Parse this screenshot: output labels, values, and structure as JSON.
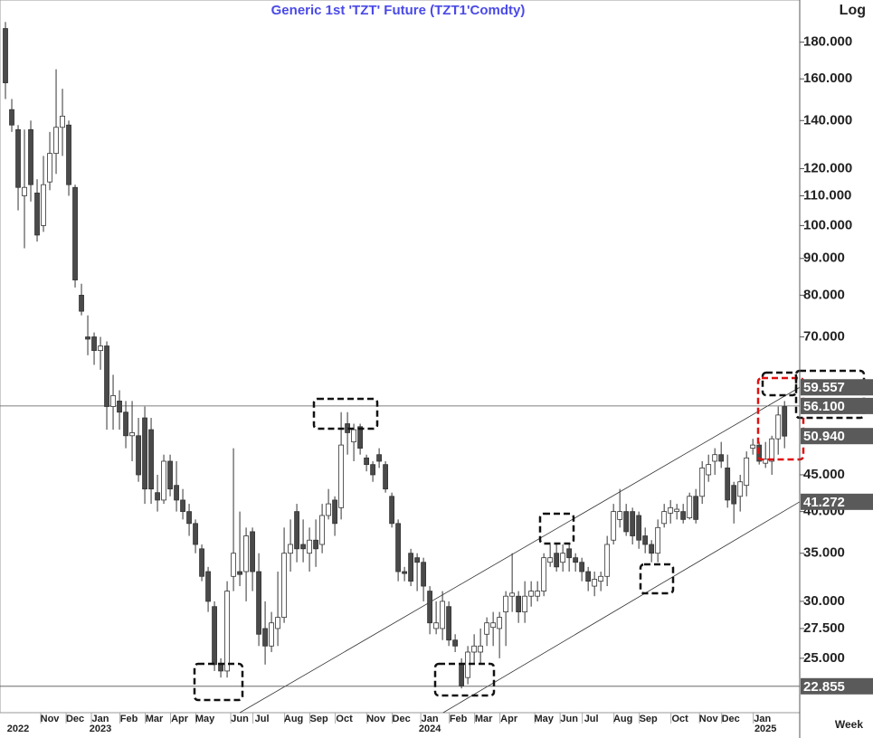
{
  "chart_data": {
    "type": "candlestick",
    "title": "Generic  1st  'TZT'  Future  (TZT1'Comdty)",
    "scale_label": "Log",
    "period_label": "Week",
    "log_scale": true,
    "ylim": [
      21.0,
      206
    ],
    "xlim": [
      -0.86,
      125.4
    ],
    "yticks": [
      {
        "value": 180,
        "label": "180.000"
      },
      {
        "value": 160,
        "label": "160.000"
      },
      {
        "value": 140,
        "label": "140.000"
      },
      {
        "value": 120,
        "label": "120.000"
      },
      {
        "value": 110,
        "label": "110.000"
      },
      {
        "value": 100,
        "label": "100.000"
      },
      {
        "value": 90,
        "label": "90.000"
      },
      {
        "value": 80,
        "label": "80.000"
      },
      {
        "value": 70,
        "label": "70.000"
      },
      {
        "value": 45,
        "label": "45.000"
      },
      {
        "value": 40,
        "label": "40.000"
      },
      {
        "value": 35,
        "label": "35.000"
      },
      {
        "value": 30,
        "label": "30.000"
      },
      {
        "value": 27.5,
        "label": "27.500"
      },
      {
        "value": 25,
        "label": "25.000"
      }
    ],
    "xticks": [
      {
        "value": 7,
        "label": "Nov"
      },
      {
        "value": 11,
        "label": "Dec"
      },
      {
        "value": 15,
        "label": "Jan"
      },
      {
        "value": 19.5,
        "label": "Feb"
      },
      {
        "value": 23.5,
        "label": "Mar"
      },
      {
        "value": 27.5,
        "label": "Apr"
      },
      {
        "value": 31.5,
        "label": "May"
      },
      {
        "value": 37,
        "label": "Jun"
      },
      {
        "value": 40.5,
        "label": "Jul"
      },
      {
        "value": 45.5,
        "label": "Aug"
      },
      {
        "value": 49.5,
        "label": "Sep"
      },
      {
        "value": 53.5,
        "label": "Oct"
      },
      {
        "value": 58.5,
        "label": "Nov"
      },
      {
        "value": 62.5,
        "label": "Dec"
      },
      {
        "value": 67,
        "label": "Jan"
      },
      {
        "value": 71.5,
        "label": "Feb"
      },
      {
        "value": 75.5,
        "label": "Mar"
      },
      {
        "value": 79.5,
        "label": "Apr"
      },
      {
        "value": 85,
        "label": "May"
      },
      {
        "value": 89,
        "label": "Jun"
      },
      {
        "value": 92.5,
        "label": "Jul"
      },
      {
        "value": 97.5,
        "label": "Aug"
      },
      {
        "value": 101.5,
        "label": "Sep"
      },
      {
        "value": 106.5,
        "label": "Oct"
      },
      {
        "value": 111,
        "label": "Nov"
      },
      {
        "value": 114.5,
        "label": "Dec"
      },
      {
        "value": 119.5,
        "label": "Jan"
      }
    ],
    "year_ticks": [
      {
        "value": 2,
        "label": "2022"
      },
      {
        "value": 15,
        "label": "2023"
      },
      {
        "value": 67,
        "label": "2024"
      },
      {
        "value": 120,
        "label": "2025"
      }
    ],
    "hlines": [
      {
        "value": 56.1,
        "label": "56.100"
      },
      {
        "value": 22.855,
        "label": "22.855"
      }
    ],
    "price_labels": [
      {
        "value": 59.557,
        "label": "59.557"
      },
      {
        "value": 50.94,
        "label": "50.940"
      },
      {
        "value": 41.272,
        "label": "41.272"
      }
    ],
    "trendlines": [
      {
        "points": [
          [
            37,
            21.0
          ],
          [
            125.4,
            59.557
          ]
        ]
      },
      {
        "points": [
          [
            69.1,
            21.0
          ],
          [
            125.4,
            41.272
          ]
        ]
      }
    ],
    "open": [
      188,
      145,
      136,
      110,
      136,
      111,
      100,
      115,
      126,
      137,
      138,
      113,
      80,
      70,
      70,
      67,
      68,
      56,
      57,
      55,
      51,
      51,
      54,
      52,
      42.5,
      41.5,
      47,
      43.5,
      41.5,
      40,
      38.5,
      35.5,
      33,
      29.5,
      24.5,
      24,
      32.5,
      33,
      33,
      37.5,
      33,
      27.5,
      26,
      27.5,
      28.5,
      35,
      40,
      36,
      35,
      36.5,
      36,
      39.5,
      41.5,
      40.5,
      53,
      50,
      52.5,
      47.5,
      46.5,
      48,
      46.5,
      42,
      38.5,
      33,
      35,
      34.5,
      34,
      31,
      27.5,
      27.5,
      29.5,
      26.5,
      24.5,
      23.5,
      25.5,
      25.5,
      27,
      27.6,
      27.5,
      29,
      30.5,
      30.5,
      29,
      30.5,
      30.5,
      31,
      34,
      35,
      34,
      35.5,
      34.5,
      34,
      33,
      31.5,
      32,
      32.5,
      36.5,
      39,
      40,
      40,
      39.5,
      37,
      36,
      35,
      38.5,
      39.8,
      40,
      40,
      39.2,
      42,
      42,
      45,
      47,
      48,
      46,
      43.5,
      42,
      43.5,
      49,
      49.5,
      46.7,
      47,
      50.5,
      56
    ],
    "high": [
      192,
      150,
      138,
      136,
      140,
      116,
      125,
      135,
      165,
      155,
      140,
      114,
      83,
      75,
      71,
      70,
      69,
      62,
      59,
      57,
      57,
      54,
      56,
      54,
      45,
      48,
      48,
      47,
      43,
      41,
      39,
      36,
      33.5,
      30,
      25,
      32,
      49,
      40,
      38,
      38,
      35,
      30,
      29,
      33,
      38,
      39,
      41,
      39,
      38,
      39,
      41,
      43,
      42,
      55,
      55,
      53,
      53,
      48,
      47,
      49,
      47,
      42.5,
      39,
      33.5,
      35.5,
      35,
      34.5,
      31.5,
      30,
      31,
      30,
      27,
      25,
      26,
      27,
      27.5,
      28.5,
      29,
      29,
      31,
      35,
      31,
      32,
      32,
      32,
      35,
      36,
      36,
      36,
      36,
      35,
      34.5,
      33.5,
      33,
      33,
      37,
      41,
      43,
      41,
      40.5,
      40,
      38,
      36.5,
      39,
      41,
      41.5,
      41,
      41,
      42.5,
      43,
      47,
      48,
      49,
      50,
      48,
      44,
      45,
      48.5,
      50.5,
      50,
      50,
      51,
      56,
      57
    ],
    "low": [
      150,
      135,
      105,
      93,
      108,
      95,
      98,
      112,
      118,
      125,
      110,
      82,
      75,
      66,
      64,
      63,
      52,
      52,
      52,
      49,
      47,
      44,
      41,
      41,
      40,
      41,
      42,
      40,
      39,
      37,
      35,
      32,
      29,
      24,
      23.5,
      23.5,
      31,
      31.5,
      30,
      31,
      26,
      24.5,
      25.5,
      26,
      28,
      33,
      34,
      34,
      33,
      33.5,
      35,
      39,
      37,
      39,
      48,
      47,
      48,
      45.5,
      44,
      46,
      42.5,
      38,
      32,
      32,
      31.5,
      31,
      30,
      27,
      27,
      26.5,
      26,
      25.5,
      22.7,
      23,
      24.5,
      24.5,
      26,
      26,
      25,
      26,
      29,
      28,
      28,
      29.5,
      30,
      30.5,
      33.5,
      33,
      33,
      33,
      33,
      32,
      31,
      30.5,
      31,
      31.5,
      36,
      38,
      37,
      36,
      35.5,
      35,
      34,
      34,
      38,
      38.5,
      39,
      38.5,
      39,
      38.5,
      41,
      44,
      45,
      46,
      40.5,
      38.5,
      40,
      42,
      48,
      46.5,
      46,
      45,
      48,
      49
    ],
    "close": [
      158,
      138,
      113,
      113,
      114,
      97,
      114,
      126,
      137,
      142,
      114,
      84,
      76,
      69.5,
      67,
      68,
      56,
      58,
      55,
      51,
      51.5,
      45,
      43,
      43,
      41.5,
      47,
      43,
      41.5,
      40,
      38.5,
      36,
      32.5,
      30,
      24.5,
      24,
      31,
      35,
      32.7,
      37,
      33,
      27,
      26,
      28,
      28.5,
      35,
      36,
      35.5,
      35.5,
      36.5,
      35.5,
      39.5,
      41,
      38.5,
      49.5,
      51.5,
      52,
      49,
      46.5,
      45,
      47,
      43,
      38.5,
      33,
      32.8,
      32,
      34,
      31.5,
      28,
      28,
      30,
      26.5,
      26,
      22.9,
      25.5,
      26,
      26,
      28,
      28,
      28.5,
      30.5,
      30.8,
      29,
      30.5,
      31,
      31,
      34.5,
      34.5,
      33.5,
      35,
      34.5,
      34,
      33,
      32,
      32.2,
      32.5,
      36,
      40,
      40,
      37.5,
      37,
      36.5,
      36,
      35,
      38,
      40,
      40.5,
      40.3,
      39,
      42,
      39,
      46,
      46.5,
      48,
      47,
      41.5,
      41,
      44,
      47.5,
      49.5,
      47,
      47.3,
      50.5,
      54.5,
      50.94
    ],
    "up_color": "#ffffff",
    "down_color": "#4a4a4a"
  }
}
